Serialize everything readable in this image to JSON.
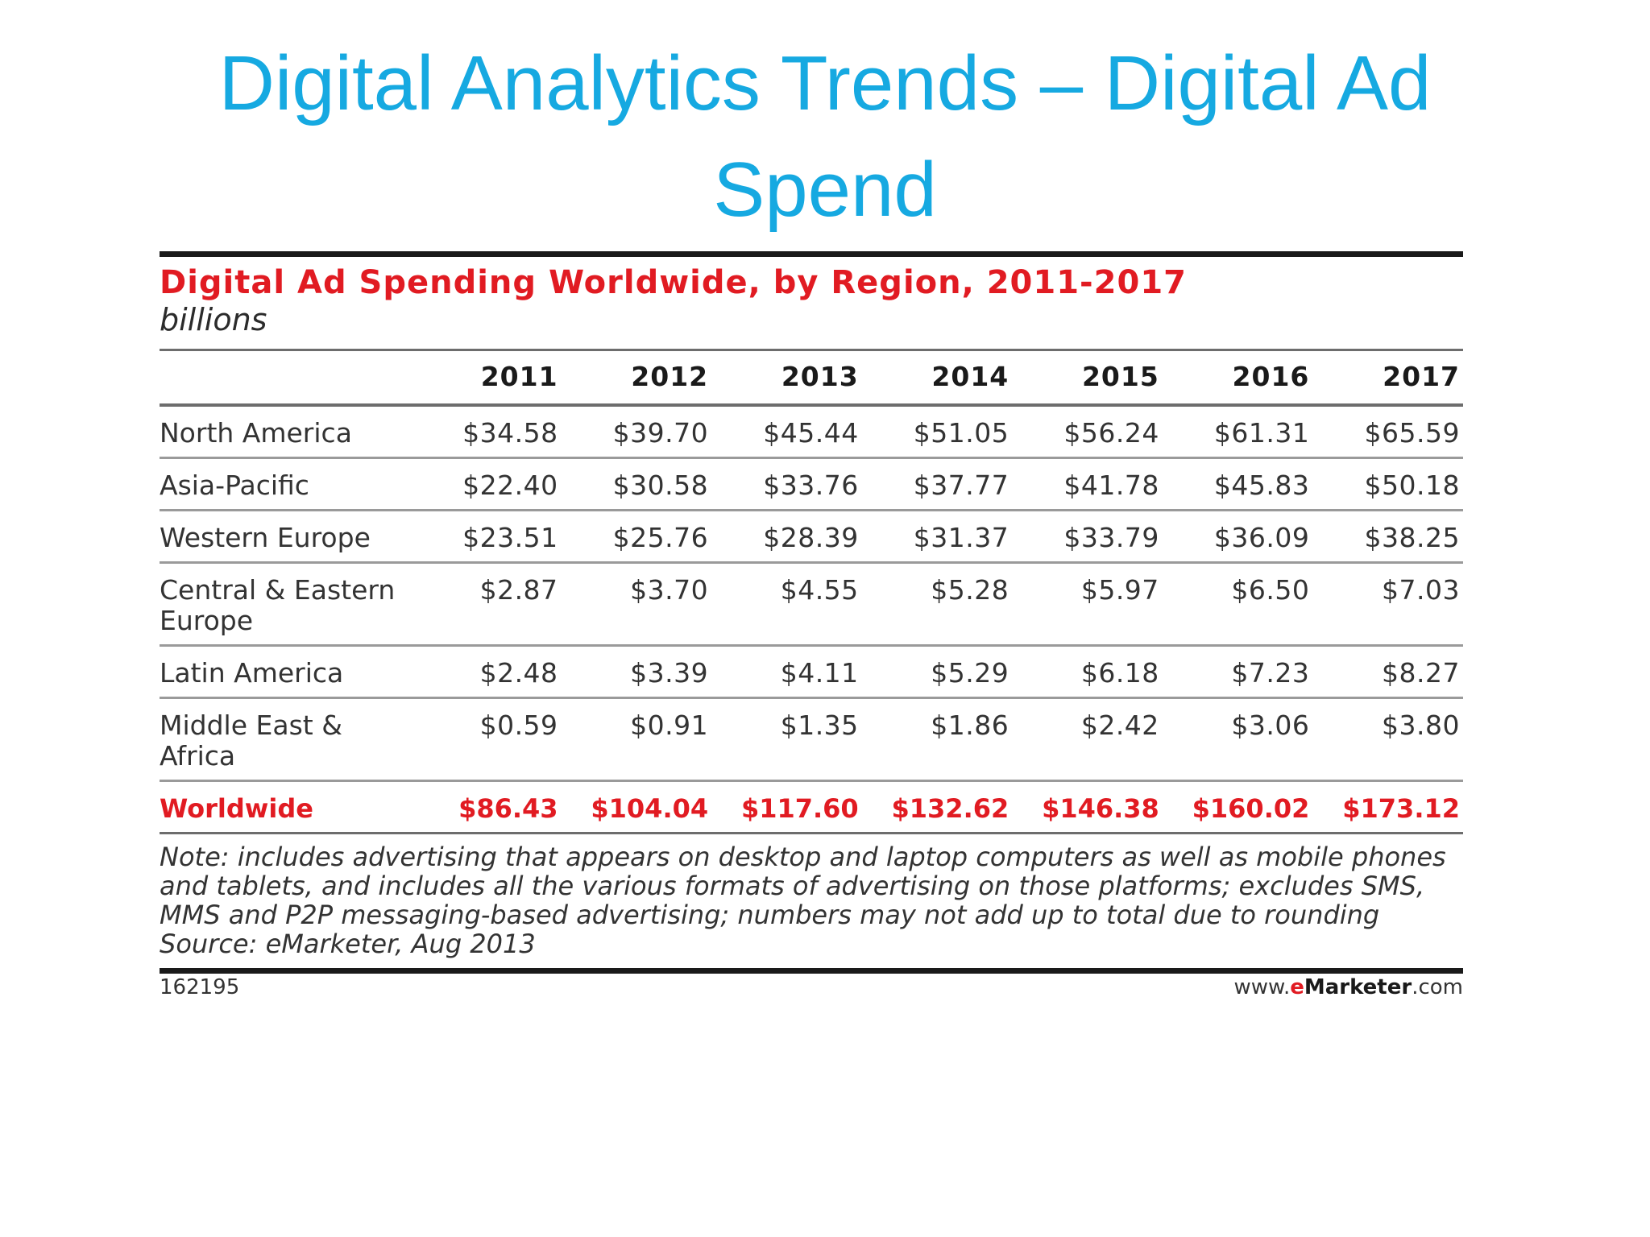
{
  "slide": {
    "title": "Digital Analytics Trends – Digital Ad Spend"
  },
  "chart_data": {
    "type": "table",
    "title": "Digital Ad Spending Worldwide, by Region, 2011-2017",
    "unit": "billions",
    "columns": [
      "2011",
      "2012",
      "2013",
      "2014",
      "2015",
      "2016",
      "2017"
    ],
    "rows": [
      {
        "region": "North America",
        "values": [
          "$34.58",
          "$39.70",
          "$45.44",
          "$51.05",
          "$56.24",
          "$61.31",
          "$65.59"
        ]
      },
      {
        "region": "Asia-Pacific",
        "values": [
          "$22.40",
          "$30.58",
          "$33.76",
          "$37.77",
          "$41.78",
          "$45.83",
          "$50.18"
        ]
      },
      {
        "region": "Western Europe",
        "values": [
          "$23.51",
          "$25.76",
          "$28.39",
          "$31.37",
          "$33.79",
          "$36.09",
          "$38.25"
        ]
      },
      {
        "region": "Central & Eastern Europe",
        "values": [
          "$2.87",
          "$3.70",
          "$4.55",
          "$5.28",
          "$5.97",
          "$6.50",
          "$7.03"
        ]
      },
      {
        "region": "Latin America",
        "values": [
          "$2.48",
          "$3.39",
          "$4.11",
          "$5.29",
          "$6.18",
          "$7.23",
          "$8.27"
        ]
      },
      {
        "region": "Middle East & Africa",
        "values": [
          "$0.59",
          "$0.91",
          "$1.35",
          "$1.86",
          "$2.42",
          "$3.06",
          "$3.80"
        ]
      }
    ],
    "total": {
      "region": "Worldwide",
      "values": [
        "$86.43",
        "$104.04",
        "$117.60",
        "$132.62",
        "$146.38",
        "$160.02",
        "$173.12"
      ]
    },
    "note": "Note: includes advertising that appears on desktop and laptop computers as well as mobile phones and tablets, and includes all the various formats of advertising on those platforms; excludes SMS, MMS and P2P messaging-based advertising; numbers may not add up to total due to rounding",
    "source": "Source: eMarketer, Aug 2013",
    "chart_id": "162195",
    "site": {
      "prefix": "www.",
      "brand_e": "e",
      "brand_name": "Marketer",
      "suffix": ".com"
    },
    "colors": {
      "title": "#16a9e1",
      "accent": "#e11b22",
      "text": "#333333"
    }
  }
}
